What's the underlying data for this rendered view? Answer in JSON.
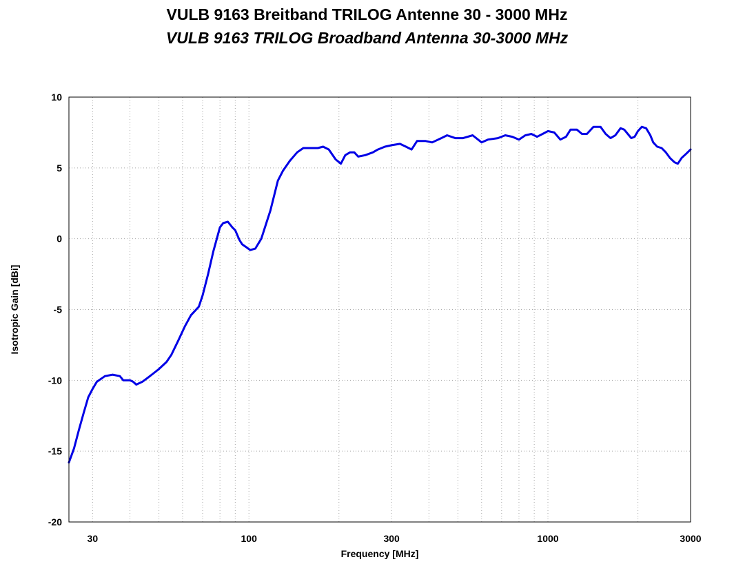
{
  "chart_data": {
    "type": "line",
    "title": "VULB 9163 Breitband TRILOG Antenne 30 - 3000 MHz",
    "subtitle": "VULB 9163 TRILOG Broadband Antenna 30-3000 MHz",
    "xlabel": "Frequency [MHz]",
    "ylabel": "Isotropic Gain [dBi]",
    "x_scale": "log",
    "xlim": [
      25,
      3000
    ],
    "ylim": [
      -20,
      10
    ],
    "x_ticks": [
      30,
      100,
      300,
      1000,
      3000
    ],
    "x_tick_labels": [
      "30",
      "100",
      "300",
      "1000",
      "3000"
    ],
    "y_ticks": [
      10,
      5,
      0,
      -5,
      -10,
      -15,
      -20
    ],
    "y_tick_labels": [
      "10",
      "5",
      "0",
      "-5",
      "-10",
      "-15",
      "-20"
    ],
    "grid": true,
    "line_color": "#0000e6",
    "series": [
      {
        "values": [
          [
            25,
            -15.8
          ],
          [
            26,
            -14.8
          ],
          [
            27,
            -13.5
          ],
          [
            28,
            -12.3
          ],
          [
            29,
            -11.2
          ],
          [
            30,
            -10.6
          ],
          [
            31,
            -10.1
          ],
          [
            33,
            -9.7
          ],
          [
            35,
            -9.6
          ],
          [
            37,
            -9.7
          ],
          [
            38,
            -10.0
          ],
          [
            40,
            -10.0
          ],
          [
            41,
            -10.1
          ],
          [
            42,
            -10.3
          ],
          [
            44,
            -10.1
          ],
          [
            46,
            -9.8
          ],
          [
            48,
            -9.5
          ],
          [
            50,
            -9.2
          ],
          [
            53,
            -8.7
          ],
          [
            55,
            -8.2
          ],
          [
            58,
            -7.2
          ],
          [
            61,
            -6.2
          ],
          [
            64,
            -5.4
          ],
          [
            68,
            -4.8
          ],
          [
            70,
            -4.0
          ],
          [
            73,
            -2.5
          ],
          [
            76,
            -0.9
          ],
          [
            80,
            0.8
          ],
          [
            82,
            1.1
          ],
          [
            85,
            1.2
          ],
          [
            88,
            0.8
          ],
          [
            90,
            0.6
          ],
          [
            93,
            -0.1
          ],
          [
            95,
            -0.4
          ],
          [
            98,
            -0.6
          ],
          [
            101,
            -0.8
          ],
          [
            105,
            -0.7
          ],
          [
            110,
            0.0
          ],
          [
            118,
            2.0
          ],
          [
            125,
            4.1
          ],
          [
            130,
            4.8
          ],
          [
            137,
            5.5
          ],
          [
            145,
            6.1
          ],
          [
            152,
            6.4
          ],
          [
            160,
            6.4
          ],
          [
            170,
            6.4
          ],
          [
            177,
            6.5
          ],
          [
            185,
            6.3
          ],
          [
            195,
            5.6
          ],
          [
            203,
            5.3
          ],
          [
            210,
            5.9
          ],
          [
            218,
            6.1
          ],
          [
            225,
            6.1
          ],
          [
            232,
            5.8
          ],
          [
            245,
            5.9
          ],
          [
            260,
            6.1
          ],
          [
            270,
            6.3
          ],
          [
            285,
            6.5
          ],
          [
            300,
            6.6
          ],
          [
            320,
            6.7
          ],
          [
            335,
            6.5
          ],
          [
            350,
            6.3
          ],
          [
            365,
            6.9
          ],
          [
            390,
            6.9
          ],
          [
            410,
            6.8
          ],
          [
            440,
            7.1
          ],
          [
            460,
            7.3
          ],
          [
            490,
            7.1
          ],
          [
            520,
            7.1
          ],
          [
            560,
            7.3
          ],
          [
            600,
            6.8
          ],
          [
            630,
            7.0
          ],
          [
            680,
            7.1
          ],
          [
            720,
            7.3
          ],
          [
            760,
            7.2
          ],
          [
            800,
            7.0
          ],
          [
            840,
            7.3
          ],
          [
            880,
            7.4
          ],
          [
            920,
            7.2
          ],
          [
            960,
            7.4
          ],
          [
            1000,
            7.6
          ],
          [
            1050,
            7.5
          ],
          [
            1100,
            7.0
          ],
          [
            1150,
            7.2
          ],
          [
            1190,
            7.7
          ],
          [
            1250,
            7.7
          ],
          [
            1300,
            7.4
          ],
          [
            1350,
            7.4
          ],
          [
            1420,
            7.9
          ],
          [
            1500,
            7.9
          ],
          [
            1560,
            7.4
          ],
          [
            1620,
            7.1
          ],
          [
            1680,
            7.3
          ],
          [
            1750,
            7.8
          ],
          [
            1800,
            7.7
          ],
          [
            1850,
            7.4
          ],
          [
            1900,
            7.1
          ],
          [
            1950,
            7.2
          ],
          [
            2000,
            7.6
          ],
          [
            2060,
            7.9
          ],
          [
            2130,
            7.8
          ],
          [
            2200,
            7.3
          ],
          [
            2250,
            6.8
          ],
          [
            2320,
            6.5
          ],
          [
            2400,
            6.4
          ],
          [
            2480,
            6.1
          ],
          [
            2560,
            5.7
          ],
          [
            2650,
            5.4
          ],
          [
            2720,
            5.3
          ],
          [
            2800,
            5.7
          ],
          [
            2900,
            6.0
          ],
          [
            3000,
            6.3
          ]
        ]
      }
    ]
  }
}
